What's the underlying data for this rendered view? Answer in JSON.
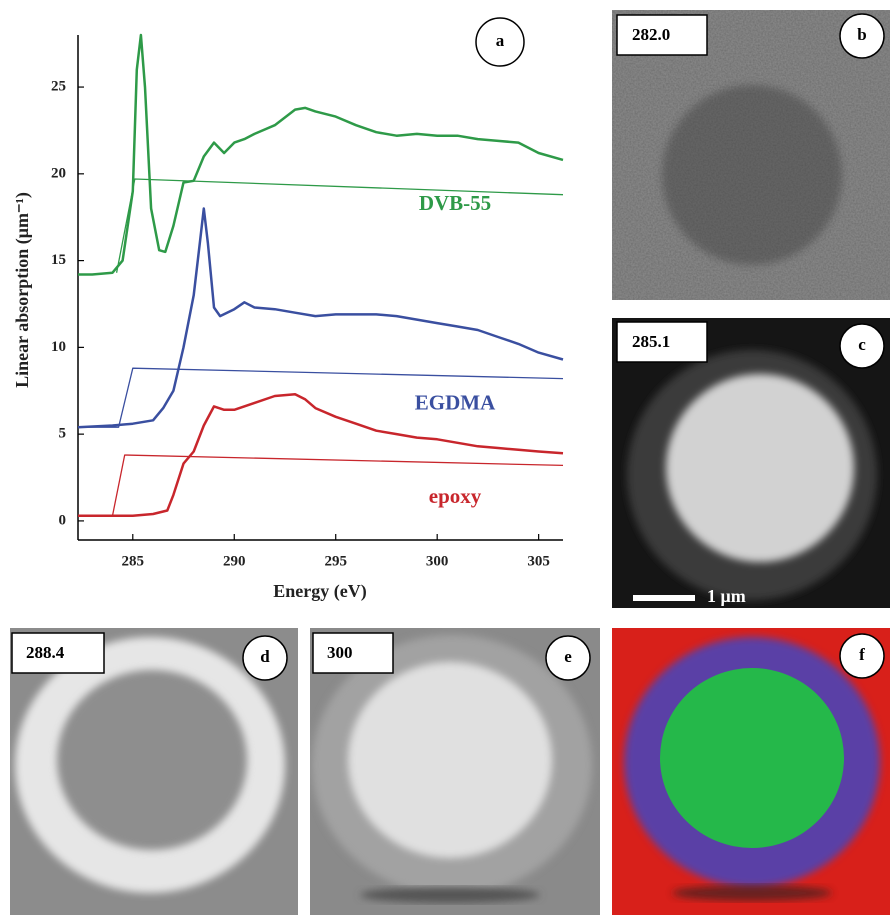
{
  "chart_data": {
    "type": "line",
    "panel_label": "a",
    "x_label": "Energy (eV)",
    "y_label": "Linear absorption (μm⁻¹)",
    "xlim": [
      282.3,
      306.2
    ],
    "ylim": [
      -1.1,
      28
    ],
    "xticks": [
      285,
      290,
      295,
      300,
      305
    ],
    "yticks": [
      0,
      5,
      10,
      15,
      20,
      25
    ],
    "grid": false,
    "series": [
      {
        "name": "DVB-55",
        "color": "#2e9a48",
        "width": 2.5,
        "x": [
          282.3,
          283,
          284,
          284.5,
          285,
          285.2,
          285.4,
          285.6,
          285.9,
          286.3,
          286.6,
          287,
          287.5,
          288,
          288.5,
          289,
          289.5,
          290,
          290.5,
          291,
          292,
          293,
          293.5,
          294,
          295,
          296,
          297,
          298,
          299,
          300,
          301,
          302,
          303,
          304,
          305,
          306.2
        ],
        "values": [
          14.2,
          14.2,
          14.3,
          15,
          19,
          26,
          28,
          25,
          18,
          15.6,
          15.5,
          17,
          19.5,
          19.6,
          21,
          21.8,
          21.2,
          21.8,
          22,
          22.3,
          22.8,
          23.7,
          23.8,
          23.6,
          23.3,
          22.8,
          22.4,
          22.2,
          22.3,
          22.2,
          22.2,
          22,
          21.9,
          21.8,
          21.2,
          20.8
        ]
      },
      {
        "color": "#2e9a48",
        "width": 1.3,
        "x": [
          284.2,
          285.1,
          306.2
        ],
        "values": [
          14.3,
          19.7,
          18.8
        ]
      },
      {
        "name": "EGDMA",
        "color": "#3a4fa0",
        "width": 2.5,
        "x": [
          282.3,
          284,
          285,
          286,
          286.5,
          287,
          287.5,
          288,
          288.3,
          288.5,
          288.7,
          289,
          289.3,
          290,
          290.5,
          291,
          292,
          293,
          294,
          295,
          296,
          297,
          298,
          299,
          300,
          301,
          302,
          303,
          304,
          305,
          306.2
        ],
        "values": [
          5.4,
          5.5,
          5.6,
          5.8,
          6.5,
          7.5,
          10,
          13,
          16,
          18,
          16,
          12.3,
          11.8,
          12.2,
          12.6,
          12.3,
          12.2,
          12,
          11.8,
          11.9,
          11.9,
          11.9,
          11.8,
          11.6,
          11.4,
          11.2,
          11,
          10.6,
          10.2,
          9.7,
          9.3
        ]
      },
      {
        "color": "#3a4fa0",
        "width": 1.3,
        "x": [
          282.3,
          284.3,
          285,
          306.2
        ],
        "values": [
          5.4,
          5.4,
          8.8,
          8.2
        ]
      },
      {
        "name": "epoxy",
        "color": "#c8262c",
        "width": 2.5,
        "x": [
          282.3,
          285,
          286,
          286.7,
          287,
          287.5,
          288,
          288.5,
          289,
          289.5,
          290,
          291,
          292,
          293,
          293.5,
          294,
          295,
          296,
          297,
          298,
          299,
          300,
          301,
          302,
          303,
          304,
          305,
          306.2
        ],
        "values": [
          0.3,
          0.3,
          0.4,
          0.6,
          1.5,
          3.3,
          4,
          5.5,
          6.6,
          6.4,
          6.4,
          6.8,
          7.2,
          7.3,
          7,
          6.5,
          6,
          5.6,
          5.2,
          5,
          4.8,
          4.7,
          4.5,
          4.3,
          4.2,
          4.1,
          4,
          3.9
        ]
      },
      {
        "color": "#c8262c",
        "width": 1.3,
        "x": [
          282.3,
          284,
          284.6,
          306.2
        ],
        "values": [
          0.3,
          0.3,
          3.8,
          3.2
        ]
      }
    ]
  },
  "panels": [
    {
      "letter": "b",
      "energy": "282.0"
    },
    {
      "letter": "c",
      "energy": "285.1",
      "scale_bar": "1 μm"
    },
    {
      "letter": "d",
      "energy": "288.4"
    },
    {
      "letter": "e",
      "energy": "300"
    },
    {
      "letter": "f"
    }
  ]
}
